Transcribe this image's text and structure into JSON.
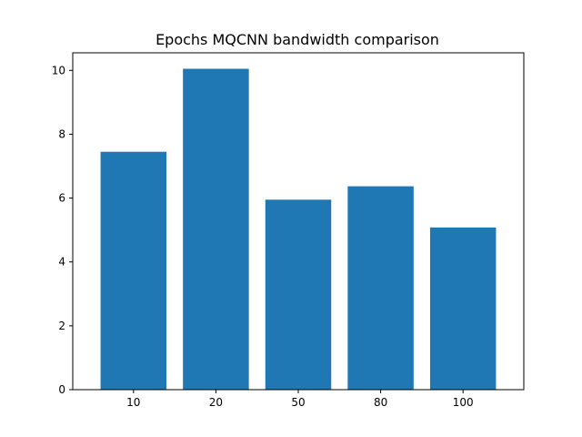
{
  "chart_data": {
    "type": "bar",
    "title": "Epochs MQCNN bandwidth comparison",
    "xlabel": "",
    "ylabel": "",
    "categories": [
      "10",
      "20",
      "50",
      "80",
      "100"
    ],
    "values": [
      7.45,
      10.05,
      5.95,
      6.37,
      5.08
    ],
    "ylim": [
      0,
      10.55
    ],
    "yticks": [
      0,
      2,
      4,
      6,
      8,
      10
    ],
    "grid": false,
    "bar_color": "#1f77b4"
  }
}
